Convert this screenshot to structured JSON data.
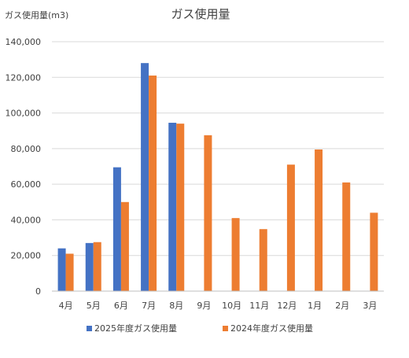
{
  "chart_data": {
    "type": "bar",
    "title": "ガス使用量",
    "unit_label": "ガス使用量(m3)",
    "categories": [
      "4月",
      "5月",
      "6月",
      "7月",
      "8月",
      "9月",
      "10月",
      "11月",
      "12月",
      "1月",
      "2月",
      "3月"
    ],
    "series": [
      {
        "name": "2025年度ガス使用量",
        "color": "#4472C4",
        "values": [
          24000,
          27000,
          69500,
          128000,
          94500,
          null,
          null,
          null,
          null,
          null,
          null,
          null
        ]
      },
      {
        "name": "2024年度ガス使用量",
        "color": "#ED7D31",
        "values": [
          21000,
          27500,
          50000,
          121000,
          94000,
          87500,
          41000,
          34800,
          71000,
          79500,
          61000,
          44000
        ]
      }
    ],
    "ylim": [
      0,
      140000
    ],
    "yticks": [
      0,
      20000,
      40000,
      60000,
      80000,
      100000,
      120000,
      140000
    ],
    "grid": true,
    "legend": "bottom"
  }
}
